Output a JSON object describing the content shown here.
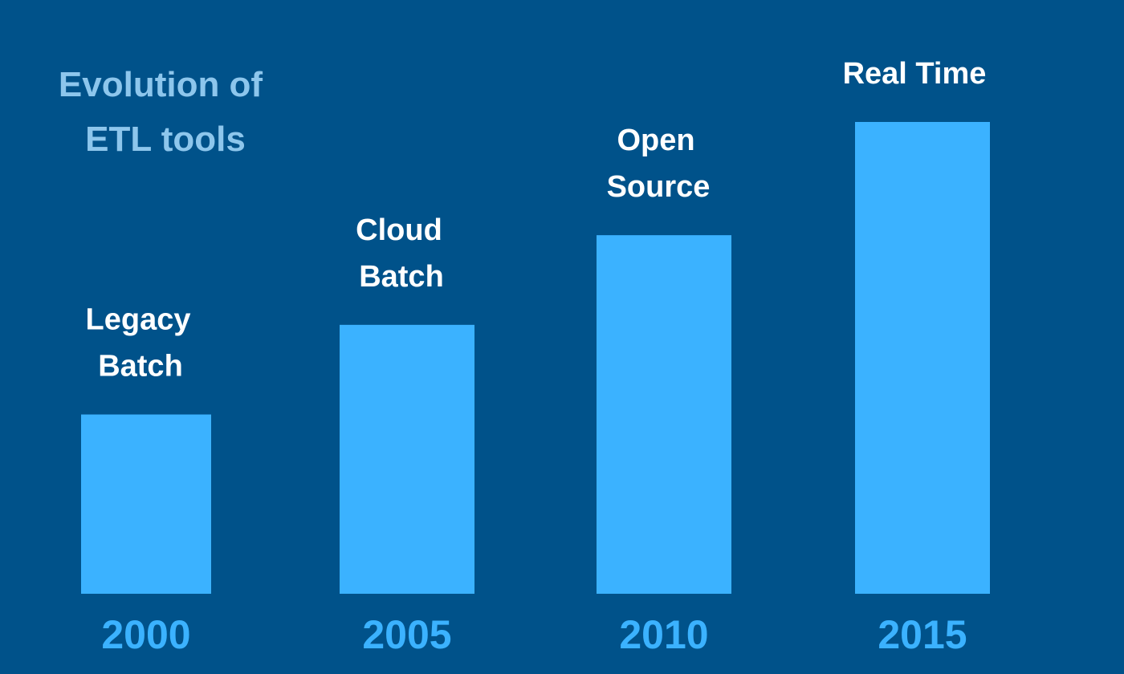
{
  "chart_data": {
    "type": "bar",
    "title_lines": [
      "Evolution of",
      "ETL tools"
    ],
    "categories": [
      "2000",
      "2005",
      "2010",
      "2015"
    ],
    "bar_labels": [
      [
        "Legacy",
        "Batch"
      ],
      [
        "Cloud",
        "Batch"
      ],
      [
        "Open",
        "Source"
      ],
      [
        "Real Time"
      ]
    ],
    "values": [
      38,
      57,
      76,
      100
    ],
    "ylim": [
      0,
      100
    ],
    "grid": false,
    "legend": "none",
    "colors": {
      "background": "#00528a",
      "bar": "#3bb2ff",
      "title": "#8dc6ec",
      "bar_label": "#ffffff",
      "tick_label": "#3bb2ff"
    }
  }
}
